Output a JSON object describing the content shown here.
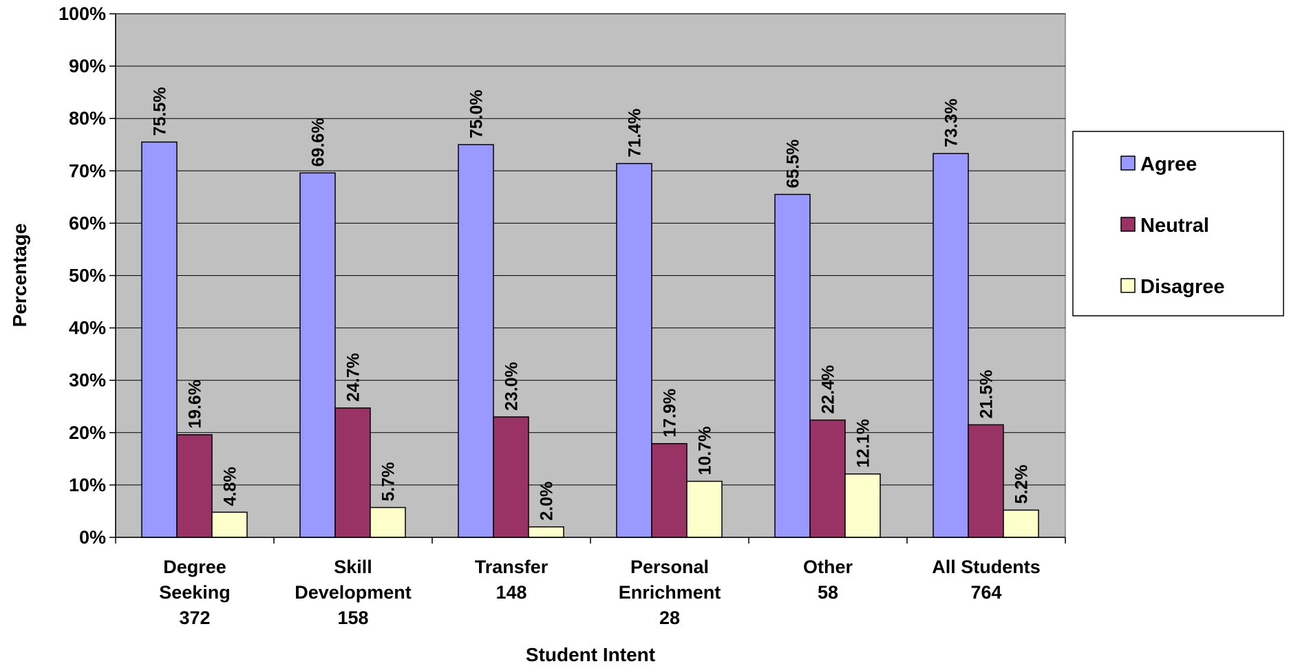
{
  "chart_data": {
    "type": "bar",
    "title": "",
    "xlabel": "Student Intent",
    "ylabel": "Percentage",
    "ylim": [
      0,
      100
    ],
    "y_ticks": [
      "0%",
      "10%",
      "20%",
      "30%",
      "40%",
      "50%",
      "60%",
      "70%",
      "80%",
      "90%",
      "100%"
    ],
    "grid": true,
    "legend_position": "right",
    "categories": [
      [
        "Degree",
        "Seeking",
        "372"
      ],
      [
        "Skill",
        "Development",
        "158"
      ],
      [
        "Transfer",
        "148"
      ],
      [
        "Personal",
        "Enrichment",
        "28"
      ],
      [
        "Other",
        "58"
      ],
      [
        "All Students",
        "764"
      ]
    ],
    "series": [
      {
        "name": "Agree",
        "color": "#9999ff",
        "values": [
          75.5,
          69.6,
          75.0,
          71.4,
          65.5,
          73.3
        ],
        "labels": [
          "75.5%",
          "69.6%",
          "75.0%",
          "71.4%",
          "65.5%",
          "73.3%"
        ]
      },
      {
        "name": "Neutral",
        "color": "#993366",
        "values": [
          19.6,
          24.7,
          23.0,
          17.9,
          22.4,
          21.5
        ],
        "labels": [
          "19.6%",
          "24.7%",
          "23.0%",
          "17.9%",
          "22.4%",
          "21.5%"
        ]
      },
      {
        "name": "Disagree",
        "color": "#ffffcc",
        "values": [
          4.8,
          5.7,
          2.0,
          10.7,
          12.1,
          5.2
        ],
        "labels": [
          "4.8%",
          "5.7%",
          "2.0%",
          "10.7%",
          "12.1%",
          "5.2%"
        ]
      }
    ],
    "plot_background": "#c0c0c0"
  }
}
